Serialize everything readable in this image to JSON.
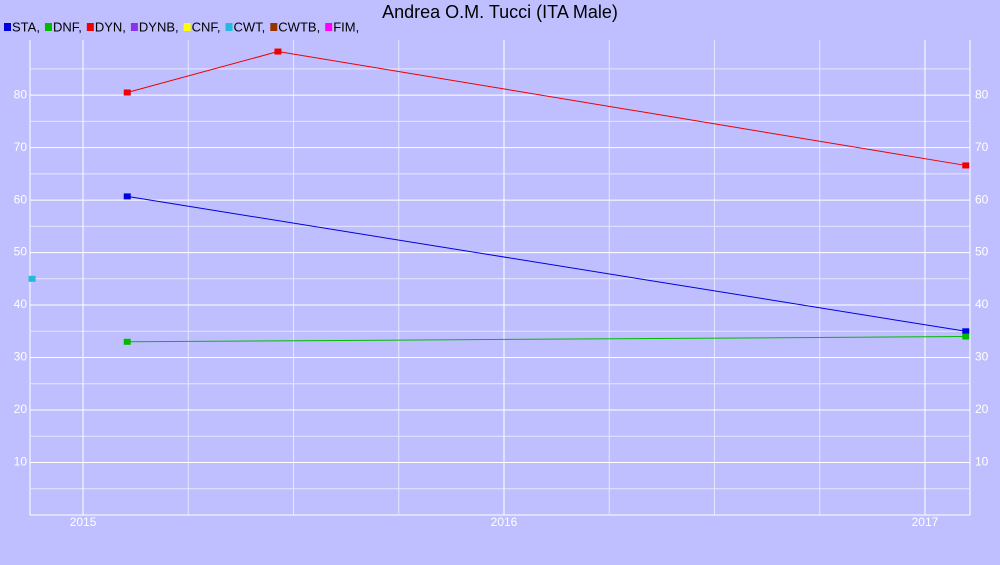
{
  "chart_data": {
    "type": "line",
    "title": "Andrea O.M. Tucci (ITA Male)",
    "series": [
      {
        "name": "STA,",
        "color": "#0000dd",
        "x": [
          2015.105,
          2017.097
        ],
        "values": [
          60.7,
          35
        ]
      },
      {
        "name": "DNF,",
        "color": "#00bb00",
        "x": [
          2015.105,
          2017.097
        ],
        "values": [
          33,
          34
        ]
      },
      {
        "name": "DYN,",
        "color": "#ee0000",
        "x": [
          2015.105,
          2015.463,
          2017.097
        ],
        "values": [
          80.5,
          88.3,
          66.6
        ]
      },
      {
        "name": "DYNB,",
        "color": "#8833ee",
        "x": [],
        "values": []
      },
      {
        "name": "CNF,",
        "color": "#ffff00",
        "x": [],
        "values": []
      },
      {
        "name": "CWT,",
        "color": "#22bbdd",
        "x": [
          2014.879
        ],
        "values": [
          45
        ]
      },
      {
        "name": "CWTB,",
        "color": "#993300",
        "x": [],
        "values": []
      },
      {
        "name": "FIM,",
        "color": "#ff00ff",
        "x": [],
        "values": []
      }
    ],
    "xlim": [
      2014.874,
      2017.107
    ],
    "xticks": [
      2015,
      2016,
      2017
    ],
    "minor_xticks": [
      2015.25,
      2015.5,
      2015.75,
      2016.25,
      2016.5,
      2016.75
    ],
    "ylim": [
      0,
      90.5
    ],
    "yticks": [
      10,
      20,
      30,
      40,
      50,
      60,
      70,
      80
    ],
    "minor_yticks": [
      5,
      15,
      25,
      35,
      45,
      55,
      65,
      75,
      85
    ],
    "grid": true
  }
}
